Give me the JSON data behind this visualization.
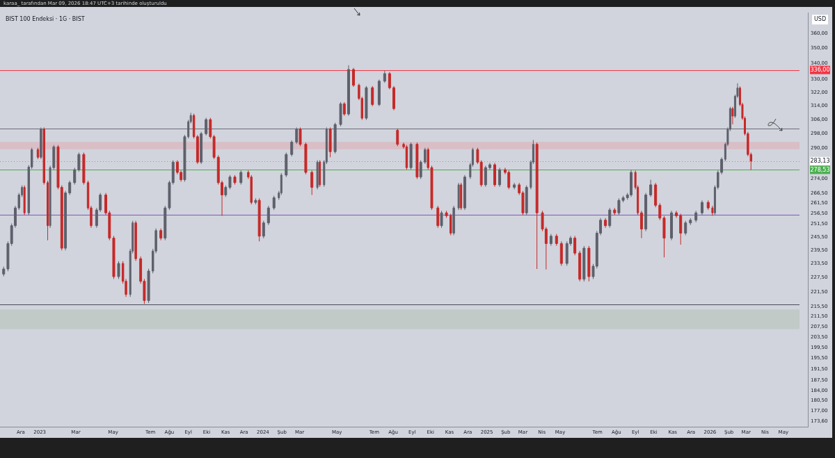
{
  "chart_data": {
    "type": "candlestick",
    "title": "BIST 100 Endeksi · 1G · BIST",
    "ylabel": "USD",
    "annotations": [
      "karaa_ tarafından Mar 09, 2026 18:47 UTC+3 tarihinde oluşturuldu"
    ],
    "log": true,
    "grid": false,
    "legend": false,
    "xlim": [
      "2022-10-28",
      "2026-06-10"
    ],
    "xticks": [
      {
        "value": "2022-12-01",
        "label": "Ara"
      },
      {
        "value": "2023-01-01",
        "label": "2023"
      },
      {
        "value": "2023-03-01",
        "label": "Mar"
      },
      {
        "value": "2023-05-01",
        "label": "May"
      },
      {
        "value": "2023-07-01",
        "label": "Tem"
      },
      {
        "value": "2023-08-01",
        "label": "Ağu"
      },
      {
        "value": "2023-09-01",
        "label": "Eyl"
      },
      {
        "value": "2023-10-01",
        "label": "Eki"
      },
      {
        "value": "2023-11-01",
        "label": "Kas"
      },
      {
        "value": "2023-12-01",
        "label": "Ara"
      },
      {
        "value": "2024-01-01",
        "label": "2024"
      },
      {
        "value": "2024-02-01",
        "label": "Şub"
      },
      {
        "value": "2024-03-01",
        "label": "Mar"
      },
      {
        "value": "2024-05-01",
        "label": "May"
      },
      {
        "value": "2024-07-01",
        "label": "Tem"
      },
      {
        "value": "2024-08-01",
        "label": "Ağu"
      },
      {
        "value": "2024-09-01",
        "label": "Eyl"
      },
      {
        "value": "2024-10-01",
        "label": "Eki"
      },
      {
        "value": "2024-11-01",
        "label": "Kas"
      },
      {
        "value": "2024-12-01",
        "label": "Ara"
      },
      {
        "value": "2025-01-01",
        "label": "2025"
      },
      {
        "value": "2025-02-01",
        "label": "Şub"
      },
      {
        "value": "2025-03-01",
        "label": "Mar"
      },
      {
        "value": "2025-04-01",
        "label": "Nis"
      },
      {
        "value": "2025-05-01",
        "label": "May"
      },
      {
        "value": "2025-07-01",
        "label": "Tem"
      },
      {
        "value": "2025-08-01",
        "label": "Ağu"
      },
      {
        "value": "2025-09-01",
        "label": "Eyl"
      },
      {
        "value": "2025-10-01",
        "label": "Eki"
      },
      {
        "value": "2025-11-01",
        "label": "Kas"
      },
      {
        "value": "2025-12-01",
        "label": "Ara"
      },
      {
        "value": "2026-01-01",
        "label": "2026"
      },
      {
        "value": "2026-02-01",
        "label": "Şub"
      },
      {
        "value": "2026-03-01",
        "label": "Mar"
      },
      {
        "value": "2026-04-01",
        "label": "Nis"
      },
      {
        "value": "2026-05-01",
        "label": "May"
      }
    ],
    "ylim": [
      171.9,
      374.2
    ],
    "yticks": [
      {
        "value": 173.6,
        "label": "173,60"
      },
      {
        "value": 177,
        "label": "177,00"
      },
      {
        "value": 180.5,
        "label": "180,50"
      },
      {
        "value": 184,
        "label": "184,00"
      },
      {
        "value": 187.5,
        "label": "187,50"
      },
      {
        "value": 191.5,
        "label": "191,50"
      },
      {
        "value": 195.5,
        "label": "195,50"
      },
      {
        "value": 199.5,
        "label": "199,50"
      },
      {
        "value": 203.5,
        "label": "203,50"
      },
      {
        "value": 207.5,
        "label": "207,50"
      },
      {
        "value": 211.5,
        "label": "211,50"
      },
      {
        "value": 215.5,
        "label": "215,50"
      },
      {
        "value": 221.5,
        "label": "221,50"
      },
      {
        "value": 227.5,
        "label": "227,50"
      },
      {
        "value": 233.5,
        "label": "233,50"
      },
      {
        "value": 239.5,
        "label": "239,50"
      },
      {
        "value": 245.5,
        "label": "245,50"
      },
      {
        "value": 251.5,
        "label": "251,50"
      },
      {
        "value": 256.5,
        "label": "256,50"
      },
      {
        "value": 261.5,
        "label": "261,50"
      },
      {
        "value": 266.5,
        "label": "266,50"
      },
      {
        "value": 274,
        "label": "274,00"
      },
      {
        "value": 290,
        "label": "290,00"
      },
      {
        "value": 298,
        "label": "298,00"
      },
      {
        "value": 306,
        "label": "306,00"
      },
      {
        "value": 314,
        "label": "314,00"
      },
      {
        "value": 322,
        "label": "322,00"
      },
      {
        "value": 330,
        "label": "330,00"
      },
      {
        "value": 340,
        "label": "340,00"
      },
      {
        "value": 350,
        "label": "350,00"
      },
      {
        "value": 360,
        "label": "360,00"
      }
    ],
    "ref_lines": [
      {
        "axis": "y",
        "value": 336,
        "label": "336,00",
        "color": "#f23645"
      },
      {
        "axis": "y",
        "value": 301,
        "color": "#6b6e78"
      },
      {
        "axis": "y",
        "value": 283.13,
        "label": "283,13",
        "color": "#9598a1",
        "line_style": "dotted"
      },
      {
        "axis": "y",
        "value": 278.53,
        "label": "278,53",
        "color": "#4caf50"
      },
      {
        "axis": "y",
        "value": 256,
        "color": "#7e57c2"
      },
      {
        "axis": "y",
        "value": 216.3,
        "color": "#4a4d57"
      }
    ],
    "bands": [
      {
        "axis": "y",
        "from": 289.5,
        "to": 293.5,
        "color": "#d9bec6"
      },
      {
        "axis": "y",
        "from": 206.5,
        "to": 214.3,
        "color": "#c2cac7"
      }
    ],
    "x": [
      "2022-11-03",
      "2022-11-10",
      "2022-11-16",
      "2022-11-22",
      "2022-11-28",
      "2022-12-03",
      "2022-12-07",
      "2022-12-14",
      "2022-12-19",
      "2022-12-29",
      "2023-01-03",
      "2023-01-08",
      "2023-01-14",
      "2023-01-18",
      "2023-01-24",
      "2023-01-31",
      "2023-02-06",
      "2023-02-12",
      "2023-02-19",
      "2023-02-27",
      "2023-03-06",
      "2023-03-14",
      "2023-03-21",
      "2023-03-26",
      "2023-04-04",
      "2023-04-10",
      "2023-04-19",
      "2023-04-25",
      "2023-05-02",
      "2023-05-10",
      "2023-05-17",
      "2023-05-22",
      "2023-05-29",
      "2023-06-02",
      "2023-06-07",
      "2023-06-15",
      "2023-06-21",
      "2023-06-28",
      "2023-07-05",
      "2023-07-10",
      "2023-07-18",
      "2023-07-25",
      "2023-08-01",
      "2023-08-07",
      "2023-08-14",
      "2023-08-20",
      "2023-08-26",
      "2023-09-01",
      "2023-09-05",
      "2023-09-10",
      "2023-09-16",
      "2023-09-22",
      "2023-09-30",
      "2023-10-07",
      "2023-10-13",
      "2023-10-20",
      "2023-10-26",
      "2023-11-01",
      "2023-11-08",
      "2023-11-16",
      "2023-11-26",
      "2023-12-08",
      "2023-12-13",
      "2023-12-20",
      "2023-12-26",
      "2024-01-02",
      "2024-01-10",
      "2024-01-19",
      "2024-01-27",
      "2024-01-31",
      "2024-02-08",
      "2024-02-17",
      "2024-02-25",
      "2024-03-02",
      "2024-03-11",
      "2024-03-21",
      "2024-03-30",
      "2024-04-03",
      "2024-04-10",
      "2024-04-14",
      "2024-04-20",
      "2024-04-28",
      "2024-05-07",
      "2024-05-13",
      "2024-05-20",
      "2024-05-28",
      "2024-06-06",
      "2024-06-11",
      "2024-06-18",
      "2024-06-28",
      "2024-07-09",
      "2024-07-18",
      "2024-07-26",
      "2024-08-02",
      "2024-08-08",
      "2024-08-18",
      "2024-08-23",
      "2024-08-30",
      "2024-09-09",
      "2024-09-15",
      "2024-09-22",
      "2024-09-27",
      "2024-10-03",
      "2024-10-13",
      "2024-10-19",
      "2024-10-27",
      "2024-11-03",
      "2024-11-08",
      "2024-11-16",
      "2024-11-20",
      "2024-11-26",
      "2024-12-05",
      "2024-12-09",
      "2024-12-17",
      "2024-12-23",
      "2024-12-30",
      "2025-01-06",
      "2025-01-14",
      "2025-01-22",
      "2025-01-31",
      "2025-02-06",
      "2025-02-15",
      "2025-02-23",
      "2025-03-01",
      "2025-03-07",
      "2025-03-14",
      "2025-03-18",
      "2025-03-24",
      "2025-04-02",
      "2025-04-08",
      "2025-04-16",
      "2025-04-25",
      "2025-05-03",
      "2025-05-12",
      "2025-05-18",
      "2025-05-25",
      "2025-06-02",
      "2025-06-09",
      "2025-06-17",
      "2025-06-24",
      "2025-06-30",
      "2025-07-06",
      "2025-07-14",
      "2025-07-21",
      "2025-07-29",
      "2025-08-05",
      "2025-08-12",
      "2025-08-19",
      "2025-08-25",
      "2025-09-01",
      "2025-09-05",
      "2025-09-11",
      "2025-09-18",
      "2025-09-26",
      "2025-10-04",
      "2025-10-11",
      "2025-10-18",
      "2025-10-30",
      "2025-11-07",
      "2025-11-14",
      "2025-11-22",
      "2025-11-30",
      "2025-12-09",
      "2025-12-19",
      "2025-12-29",
      "2026-01-05",
      "2026-01-09",
      "2026-01-14",
      "2026-01-20",
      "2026-01-26",
      "2026-01-30",
      "2026-02-03",
      "2026-02-07",
      "2026-02-11",
      "2026-02-15",
      "2026-02-19",
      "2026-02-23",
      "2026-02-27",
      "2026-03-04",
      "2026-03-09"
    ],
    "ohlc": [
      [
        229,
        232.2,
        228,
        231.2
      ],
      [
        231.2,
        243.5,
        230.2,
        242.5
      ],
      [
        242.5,
        251.8,
        241.5,
        250.8
      ],
      [
        250.8,
        260.3,
        249.8,
        259.3
      ],
      [
        259.3,
        266.7,
        258.3,
        265.7
      ],
      [
        265.7,
        270.5,
        264.7,
        269.5
      ],
      [
        269.5,
        270.5,
        255.9,
        256.9
      ],
      [
        256.9,
        281,
        255.9,
        280
      ],
      [
        280,
        290.3,
        279,
        289.3
      ],
      [
        289.3,
        290.3,
        284.2,
        285.2
      ],
      [
        285.2,
        301.6,
        284.2,
        300.6
      ],
      [
        300.6,
        301.6,
        270.9,
        271.9
      ],
      [
        271.9,
        272.9,
        244,
        250.8
      ],
      [
        250.8,
        280.7,
        249.8,
        279.7
      ],
      [
        279.7,
        291.8,
        278.7,
        290.8
      ],
      [
        290.8,
        291.8,
        268.5,
        269.5
      ],
      [
        269.5,
        270.5,
        239.4,
        240.4
      ],
      [
        240.4,
        267.7,
        239.4,
        266.7
      ],
      [
        266.7,
        272.9,
        265.7,
        271.9
      ],
      [
        271.9,
        279.6,
        270.9,
        278.6
      ],
      [
        278.6,
        287.7,
        277.6,
        286.7
      ],
      [
        286.7,
        287.7,
        270.9,
        271.9
      ],
      [
        271.9,
        272.9,
        258.3,
        259.3
      ],
      [
        259.3,
        260.3,
        249.8,
        250.8
      ],
      [
        250.8,
        259.3,
        249.8,
        258.3
      ],
      [
        258.3,
        266.7,
        257.3,
        265.7
      ],
      [
        265.7,
        266.7,
        255.9,
        256.9
      ],
      [
        256.9,
        257.9,
        244,
        245
      ],
      [
        245,
        246,
        226.9,
        227.9
      ],
      [
        227.9,
        234.6,
        226.9,
        233.6
      ],
      [
        233.6,
        234.6,
        224.9,
        225.9
      ],
      [
        225.9,
        226.9,
        219.4,
        220.4
      ],
      [
        220.4,
        240.1,
        219.4,
        239.1
      ],
      [
        239.1,
        253.1,
        238.1,
        252.1
      ],
      [
        252.1,
        253.1,
        234.7,
        235.7
      ],
      [
        235.7,
        236.7,
        224.9,
        225.9
      ],
      [
        225.9,
        226.9,
        216.5,
        217.9
      ],
      [
        217.9,
        231.3,
        216.9,
        230.3
      ],
      [
        230.3,
        240.1,
        229.3,
        239.1
      ],
      [
        239.1,
        249.5,
        238.1,
        248.5
      ],
      [
        248.5,
        249.5,
        244,
        245
      ],
      [
        245,
        260.3,
        244,
        259.3
      ],
      [
        259.3,
        272.9,
        258.3,
        271.9
      ],
      [
        271.9,
        283.6,
        270.9,
        282.6
      ],
      [
        282.6,
        283.6,
        276.2,
        277.2
      ],
      [
        277.2,
        278.2,
        272.4,
        273.4
      ],
      [
        273.4,
        297.4,
        272.4,
        296.4
      ],
      [
        296.4,
        305.9,
        295.4,
        304.9
      ],
      [
        304.9,
        310,
        303.9,
        308.5
      ],
      [
        308.5,
        309.5,
        295.4,
        296.4
      ],
      [
        296.4,
        297.4,
        281.6,
        282.6
      ],
      [
        282.6,
        299.1,
        281.6,
        298.1
      ],
      [
        298.1,
        307.1,
        297.1,
        306.1
      ],
      [
        306.1,
        307.1,
        295.4,
        296.4
      ],
      [
        296.4,
        297.4,
        284.2,
        285.2
      ],
      [
        285.2,
        286.2,
        270.9,
        271.9
      ],
      [
        271.9,
        272.9,
        255.5,
        265.7
      ],
      [
        265.7,
        270.5,
        264.7,
        269.5
      ],
      [
        269.5,
        275.8,
        268.5,
        274.8
      ],
      [
        274.8,
        275.8,
        270.9,
        271.9
      ],
      [
        271.9,
        278.2,
        270.9,
        277.2
      ],
      [
        277.2,
        278.2,
        273.8,
        274.8
      ],
      [
        274.8,
        275.8,
        261,
        262
      ],
      [
        262,
        264,
        261,
        263
      ],
      [
        263,
        264,
        243.5,
        245.9
      ],
      [
        245.9,
        253.1,
        244.9,
        252.1
      ],
      [
        252.1,
        260.3,
        251.1,
        259.3
      ],
      [
        259.3,
        265.3,
        258.3,
        264.3
      ],
      [
        264.3,
        267.7,
        263.3,
        266.7
      ],
      [
        266.7,
        276.8,
        265.7,
        275.8
      ],
      [
        275.8,
        287.7,
        274.8,
        286.7
      ],
      [
        286.7,
        294.4,
        285.7,
        293.4
      ],
      [
        293.4,
        301.6,
        292.4,
        300.6
      ],
      [
        300.6,
        301.6,
        291.2,
        292.2
      ],
      [
        292.2,
        293.2,
        276.2,
        277.2
      ],
      [
        277.2,
        278.2,
        265.7,
        269.5
      ],
      [
        269.5,
        283.6,
        268.5,
        282.6
      ],
      [
        282.6,
        283.6,
        269.8,
        270.8
      ],
      [
        270.8,
        283.6,
        269.8,
        282.6
      ],
      [
        282.6,
        301.6,
        281.6,
        300.6
      ],
      [
        300.6,
        301.6,
        285.2,
        288.2
      ],
      [
        288.2,
        304.3,
        287.2,
        303.3
      ],
      [
        303.3,
        316.3,
        302.3,
        315.3
      ],
      [
        315.3,
        316.3,
        308.3,
        309.3
      ],
      [
        309.3,
        339,
        308.3,
        336.3
      ],
      [
        336.3,
        337.3,
        325.5,
        326.5
      ],
      [
        326.5,
        327.5,
        317.5,
        318.5
      ],
      [
        318.5,
        319.5,
        305.9,
        306.9
      ],
      [
        306.9,
        326,
        305.9,
        325
      ],
      [
        325,
        326,
        313.9,
        314.9
      ],
      [
        314.9,
        330,
        313.9,
        329
      ],
      [
        329,
        335.5,
        328,
        333.7
      ],
      [
        333.7,
        334.7,
        324,
        325
      ],
      [
        325,
        326,
        311.5,
        312.5
      ],
      [
        300,
        301,
        291.2,
        292.2
      ],
      [
        292.2,
        293.2,
        289.8,
        290.8
      ],
      [
        290.8,
        291.8,
        278.7,
        279.7
      ],
      [
        279.7,
        293.2,
        278.7,
        292.2
      ],
      [
        292.2,
        293.2,
        273.8,
        274.8
      ],
      [
        274.8,
        283.6,
        273.8,
        282.6
      ],
      [
        282.6,
        290.3,
        281.6,
        289.3
      ],
      [
        289.3,
        290.3,
        278.7,
        279.7
      ],
      [
        279.7,
        280.7,
        258.3,
        259.3
      ],
      [
        259.3,
        260.3,
        249.8,
        250.8
      ],
      [
        250.8,
        257.9,
        249.8,
        256.9
      ],
      [
        256.9,
        257.9,
        254.5,
        255.5
      ],
      [
        255.5,
        256.5,
        246.3,
        247.3
      ],
      [
        247.3,
        260.3,
        246.3,
        259.3
      ],
      [
        259.3,
        271.8,
        258.3,
        270.8
      ],
      [
        270.8,
        271.8,
        258.3,
        259.3
      ],
      [
        259.3,
        275.8,
        258.3,
        274.8
      ],
      [
        274.8,
        282.2,
        273.8,
        281.2
      ],
      [
        281.2,
        290.3,
        280.2,
        289.3
      ],
      [
        289.3,
        290.3,
        281.6,
        282.6
      ],
      [
        282.6,
        283.6,
        269.8,
        270.8
      ],
      [
        270.8,
        280.7,
        269.8,
        279.7
      ],
      [
        279.7,
        282.2,
        278.7,
        281.2
      ],
      [
        281.2,
        282.2,
        269.8,
        270.8
      ],
      [
        270.8,
        279.6,
        269.8,
        278.6
      ],
      [
        278.6,
        279.6,
        276.2,
        277.2
      ],
      [
        277.2,
        278.2,
        268.5,
        269.5
      ],
      [
        269.5,
        271.8,
        268.5,
        270.8
      ],
      [
        270.8,
        271.8,
        265.7,
        266.7
      ],
      [
        266.7,
        267.7,
        255.9,
        256.9
      ],
      [
        256.9,
        270.5,
        255.9,
        269.5
      ],
      [
        269.5,
        283.6,
        268.5,
        282.6
      ],
      [
        282.6,
        294.6,
        281.6,
        292.2
      ],
      [
        292.2,
        293.2,
        231.2,
        256.9
      ],
      [
        256.9,
        257.9,
        248.2,
        249.2
      ],
      [
        249.2,
        250.2,
        231,
        242.5
      ],
      [
        242.5,
        246.9,
        241.5,
        245.9
      ],
      [
        245.9,
        246.9,
        241.5,
        242.5
      ],
      [
        242.5,
        243.5,
        232.6,
        233.6
      ],
      [
        233.6,
        243.5,
        232.6,
        242.5
      ],
      [
        242.5,
        246,
        241.5,
        245
      ],
      [
        245,
        246,
        237.2,
        238.2
      ],
      [
        238.2,
        239.2,
        225.9,
        226.8
      ],
      [
        226.8,
        241.4,
        225.8,
        240.4
      ],
      [
        240.4,
        241.4,
        225.9,
        227.9
      ],
      [
        227.9,
        233.4,
        226.9,
        232.4
      ],
      [
        232.4,
        248.3,
        231.4,
        247.3
      ],
      [
        247.3,
        254.4,
        246.3,
        253.4
      ],
      [
        253.4,
        254.4,
        249.8,
        250.8
      ],
      [
        250.8,
        259.3,
        249.8,
        258.3
      ],
      [
        258.3,
        259.3,
        255.9,
        256.9
      ],
      [
        256.9,
        264,
        255.9,
        263
      ],
      [
        263,
        265.3,
        262,
        264.3
      ],
      [
        264.3,
        266.7,
        263.3,
        265.7
      ],
      [
        265.7,
        278.5,
        264.7,
        277.2
      ],
      [
        277.2,
        278.2,
        268.5,
        269.5
      ],
      [
        269.5,
        270.5,
        255.9,
        256.9
      ],
      [
        256.9,
        257.9,
        245,
        249.2
      ],
      [
        249.2,
        266.7,
        248.2,
        265.7
      ],
      [
        265.7,
        273.4,
        264.7,
        270.8
      ],
      [
        270.8,
        271.8,
        259.6,
        260.6
      ],
      [
        260.6,
        261.6,
        253.4,
        254.4
      ],
      [
        254.4,
        255.4,
        236.3,
        245
      ],
      [
        245,
        257.9,
        244,
        256.9
      ],
      [
        256.9,
        257.9,
        254.5,
        255.5
      ],
      [
        255.5,
        256.5,
        242,
        247.3
      ],
      [
        247.3,
        253.1,
        246.3,
        252.1
      ],
      [
        252.1,
        254.4,
        251.1,
        253.4
      ],
      [
        253.4,
        257.9,
        252.4,
        256.9
      ],
      [
        256.9,
        263,
        255.9,
        262
      ],
      [
        262,
        263,
        258.3,
        259.3
      ],
      [
        259.3,
        260.3,
        255.5,
        256.9
      ],
      [
        256.9,
        270.5,
        255.9,
        269.5
      ],
      [
        269.5,
        278.2,
        268.5,
        277.2
      ],
      [
        277.2,
        285.1,
        276.2,
        284.1
      ],
      [
        284.1,
        293.2,
        283.1,
        292.2
      ],
      [
        292.2,
        301.6,
        291.2,
        300.6
      ],
      [
        300.6,
        313.5,
        299.6,
        312.5
      ],
      [
        312.5,
        313.5,
        303.4,
        308.1
      ],
      [
        308.1,
        320.8,
        307.1,
        319.8
      ],
      [
        319.8,
        327.7,
        318.8,
        324.8
      ],
      [
        324.8,
        325.8,
        313.9,
        314.9
      ],
      [
        314.9,
        315.9,
        305.9,
        306.9
      ],
      [
        306.9,
        307.9,
        297.1,
        298.1
      ],
      [
        298.1,
        299.1,
        285.7,
        286.7
      ],
      [
        286.7,
        287.7,
        278.5,
        283.13
      ]
    ]
  }
}
